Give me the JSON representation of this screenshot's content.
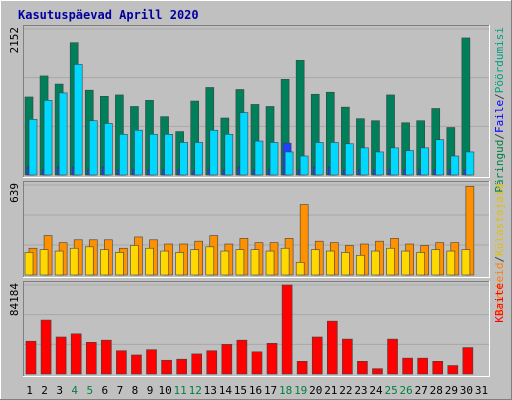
{
  "chart_data": {
    "type": "bar",
    "title": "Kasutuspäevad Aprill 2020",
    "categories": [
      "1",
      "2",
      "3",
      "4",
      "5",
      "6",
      "7",
      "8",
      "9",
      "10",
      "11",
      "12",
      "13",
      "14",
      "15",
      "16",
      "17",
      "18",
      "19",
      "20",
      "21",
      "22",
      "23",
      "24",
      "25",
      "26",
      "27",
      "28",
      "29",
      "30",
      "31"
    ],
    "weekend_days": [
      "4",
      "5",
      "11",
      "12",
      "18",
      "19",
      "25",
      "26"
    ],
    "panels": [
      {
        "id": "top",
        "ylabel_max": "2152",
        "ylim": [
          0,
          2152
        ],
        "legend": [
          "Päringud",
          "/",
          "Faile",
          "/",
          "Pöördumisi"
        ],
        "legend_colors": [
          "#008040",
          "#404040",
          "#0000ff",
          "#404040",
          "#00a080"
        ],
        "series": [
          {
            "name": "Päringud",
            "color": "#00805a",
            "values": [
              1150,
              1460,
              1340,
              1950,
              1250,
              1160,
              1180,
              1010,
              1100,
              860,
              640,
              1090,
              1290,
              840,
              1260,
              1040,
              1010,
              1410,
              1690,
              1190,
              1220,
              1000,
              830,
              800,
              1180,
              770,
              800,
              980,
              700,
              2020,
              null
            ]
          },
          {
            "name": "Faile",
            "color": "#2040ff",
            "values": [
              120,
              80,
              120,
              120,
              80,
              120,
              80,
              80,
              80,
              80,
              80,
              60,
              80,
              80,
              120,
              80,
              80,
              470,
              80,
              120,
              120,
              80,
              80,
              80,
              80,
              80,
              80,
              80,
              80,
              80,
              null
            ]
          },
          {
            "name": "Pöördumisi",
            "color": "#00d8ff",
            "values": [
              820,
              1100,
              1210,
              1630,
              800,
              760,
              600,
              660,
              600,
              600,
              480,
              480,
              660,
              600,
              920,
              500,
              480,
              340,
              280,
              480,
              480,
              460,
              400,
              340,
              400,
              360,
              400,
              520,
              280,
              340,
              null
            ]
          }
        ]
      },
      {
        "id": "middle",
        "ylabel_max": "639",
        "ylim": [
          0,
          639
        ],
        "legend": [
          "Arveteid",
          "/",
          "Külastajaid"
        ],
        "legend_colors": [
          "#ff8000",
          "#404040",
          "#e0c000"
        ],
        "series": [
          {
            "name": "Arveteid",
            "color": "#ff9000",
            "values": [
              190,
              280,
              230,
              250,
              250,
              250,
              190,
              270,
              250,
              220,
              220,
              240,
              280,
              220,
              260,
              230,
              230,
              260,
              500,
              240,
              230,
              210,
              220,
              240,
              260,
              220,
              210,
              230,
              230,
              630,
              null
            ]
          },
          {
            "name": "Külastajaid",
            "color": "#ffd800",
            "values": [
              160,
              180,
              170,
              190,
              200,
              180,
              160,
              210,
              190,
              170,
              160,
              180,
              200,
              170,
              180,
              180,
              170,
              190,
              90,
              180,
              170,
              160,
              140,
              170,
              190,
              170,
              160,
              180,
              170,
              180,
              null
            ]
          }
        ]
      },
      {
        "id": "bottom",
        "ylabel_max": "84184",
        "ylim": [
          0,
          84184
        ],
        "legend": [
          "KBaite"
        ],
        "legend_colors": [
          "#ff0000"
        ],
        "series": [
          {
            "name": "KBaite",
            "color": "#ff0000",
            "values": [
              31000,
              51000,
              35000,
              38000,
              30000,
              32000,
              22000,
              18000,
              23000,
              13000,
              14000,
              19000,
              22000,
              28000,
              32000,
              21000,
              29000,
              84184,
              12000,
              35000,
              50000,
              33000,
              12000,
              5000,
              33000,
              15000,
              15000,
              12000,
              8000,
              25000,
              null
            ]
          }
        ]
      }
    ]
  }
}
